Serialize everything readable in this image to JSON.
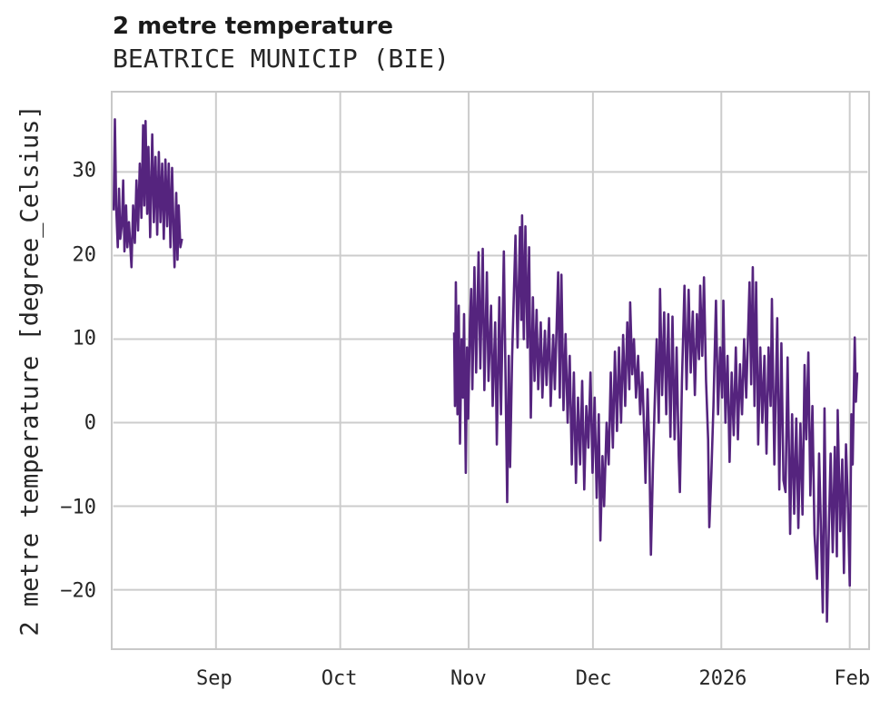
{
  "header": {
    "title": "2 metre temperature",
    "subtitle": "BEATRICE MUNICIP (BIE)"
  },
  "colors": {
    "line": "#55247e",
    "grid": "#cccccc",
    "plot_border": "#c8c8c8",
    "text": "#262626",
    "background": "#ffffff"
  },
  "chart_data": {
    "type": "line",
    "title": "2 metre temperature",
    "subtitle": "BEATRICE MUNICIP (BIE)",
    "xlabel": "",
    "ylabel": "2 metre temperature [degree_Celsius]",
    "x_unit": "days since Aug 1 (2025), data gap between late Aug and late Oct",
    "xlim": [
      6.2,
      188.3
    ],
    "ylim": [
      -27,
      39.5
    ],
    "grid": true,
    "legend": "none",
    "line_color": "#55247e",
    "line_width": 2.6,
    "x_ticks": [
      {
        "pos": 31,
        "label": "Sep"
      },
      {
        "pos": 61,
        "label": "Oct"
      },
      {
        "pos": 92,
        "label": "Nov"
      },
      {
        "pos": 122,
        "label": "Dec"
      },
      {
        "pos": 153,
        "label": "2026"
      },
      {
        "pos": 184,
        "label": "Feb"
      }
    ],
    "y_ticks": [
      {
        "pos": 30,
        "label": "30"
      },
      {
        "pos": 20,
        "label": "20"
      },
      {
        "pos": 10,
        "label": "10"
      },
      {
        "pos": 0,
        "label": "0"
      },
      {
        "pos": -10,
        "label": "−10"
      },
      {
        "pos": -20,
        "label": "−20"
      }
    ],
    "series": [
      {
        "name": "2 metre temperature",
        "segments": [
          [
            [
              6.3,
              25.4
            ],
            [
              6.6,
              36.3
            ],
            [
              6.9,
              26.0
            ],
            [
              7.3,
              21.0
            ],
            [
              7.6,
              28.0
            ],
            [
              7.9,
              22.0
            ],
            [
              8.3,
              23.8
            ],
            [
              8.6,
              29.0
            ],
            [
              8.9,
              20.5
            ],
            [
              9.3,
              26.0
            ],
            [
              9.6,
              21.0
            ],
            [
              10.0,
              24.0
            ],
            [
              10.6,
              18.6
            ],
            [
              11.0,
              26.0
            ],
            [
              11.4,
              21.5
            ],
            [
              11.8,
              29.0
            ],
            [
              12.2,
              23.0
            ],
            [
              12.6,
              31.0
            ],
            [
              13.0,
              24.5
            ],
            [
              13.4,
              35.6
            ],
            [
              13.7,
              26.0
            ],
            [
              14.0,
              36.1
            ],
            [
              14.4,
              25.0
            ],
            [
              14.7,
              33.0
            ],
            [
              15.1,
              22.2
            ],
            [
              15.6,
              34.5
            ],
            [
              16.0,
              24.0
            ],
            [
              16.4,
              31.8
            ],
            [
              16.8,
              22.5
            ],
            [
              17.2,
              32.4
            ],
            [
              17.6,
              24.0
            ],
            [
              18.0,
              31.0
            ],
            [
              18.4,
              22.0
            ],
            [
              18.8,
              31.5
            ],
            [
              19.2,
              23.5
            ],
            [
              19.6,
              31.0
            ],
            [
              20.0,
              21.0
            ],
            [
              20.4,
              30.5
            ],
            [
              20.8,
              22.0
            ],
            [
              21.0,
              18.6
            ],
            [
              21.4,
              27.5
            ],
            [
              21.7,
              19.5
            ],
            [
              22.0,
              26.0
            ],
            [
              22.4,
              21.0
            ],
            [
              22.8,
              22.0
            ]
          ],
          [
            [
              88.5,
              10.8
            ],
            [
              88.7,
              2.0
            ],
            [
              88.9,
              16.8
            ],
            [
              89.3,
              1.0
            ],
            [
              89.6,
              14.0
            ],
            [
              89.9,
              -2.5
            ],
            [
              90.3,
              10.0
            ],
            [
              90.6,
              3.0
            ],
            [
              90.9,
              13.0
            ],
            [
              91.3,
              -6.0
            ],
            [
              91.6,
              9.0
            ],
            [
              91.9,
              0.5
            ],
            [
              92.3,
              12.0
            ],
            [
              92.6,
              16.0
            ],
            [
              92.9,
              4.0
            ],
            [
              93.4,
              18.6
            ],
            [
              93.8,
              6.0
            ],
            [
              94.4,
              20.4
            ],
            [
              94.8,
              6.5
            ],
            [
              95.4,
              20.8
            ],
            [
              95.8,
              3.9
            ],
            [
              96.4,
              18.0
            ],
            [
              96.8,
              5.0
            ],
            [
              97.4,
              14.0
            ],
            [
              97.8,
              2.0
            ],
            [
              98.4,
              12.0
            ],
            [
              98.8,
              -2.6
            ],
            [
              99.4,
              15.0
            ],
            [
              99.8,
              1.0
            ],
            [
              100.5,
              20.5
            ],
            [
              101.3,
              -9.5
            ],
            [
              101.7,
              8.0
            ],
            [
              102.0,
              -5.3
            ],
            [
              102.5,
              8.0
            ],
            [
              103.3,
              22.4
            ],
            [
              103.8,
              9.0
            ],
            [
              104.4,
              23.4
            ],
            [
              104.7,
              12.3
            ],
            [
              104.9,
              24.8
            ],
            [
              105.3,
              10.0
            ],
            [
              105.7,
              23.5
            ],
            [
              106.2,
              9.0
            ],
            [
              106.6,
              21.0
            ],
            [
              107.0,
              0.6
            ],
            [
              107.5,
              15.0
            ],
            [
              107.9,
              5.0
            ],
            [
              108.4,
              13.5
            ],
            [
              108.8,
              4.0
            ],
            [
              109.4,
              12.0
            ],
            [
              109.8,
              3.0
            ],
            [
              110.4,
              11.0
            ],
            [
              110.8,
              4.5
            ],
            [
              111.4,
              12.5
            ],
            [
              111.8,
              2.0
            ],
            [
              112.4,
              10.5
            ],
            [
              112.8,
              4.0
            ],
            [
              113.6,
              18.0
            ],
            [
              114.0,
              3.0
            ],
            [
              114.4,
              17.7
            ],
            [
              114.9,
              1.5
            ],
            [
              115.4,
              10.6
            ],
            [
              115.9,
              0.0
            ],
            [
              116.4,
              8.0
            ],
            [
              116.9,
              -5.0
            ],
            [
              117.4,
              6.0
            ],
            [
              117.9,
              -7.2
            ],
            [
              118.4,
              3.0
            ],
            [
              118.9,
              -5.0
            ],
            [
              119.4,
              5.0
            ],
            [
              119.9,
              -8.0
            ],
            [
              120.4,
              2.0
            ],
            [
              120.9,
              -3.0
            ],
            [
              121.4,
              6.0
            ],
            [
              121.9,
              -6.0
            ],
            [
              122.4,
              3.0
            ],
            [
              122.9,
              -9.0
            ],
            [
              123.4,
              1.0
            ],
            [
              123.8,
              -14.1
            ],
            [
              124.3,
              -4.0
            ],
            [
              124.7,
              -10.0
            ],
            [
              125.3,
              0.0
            ],
            [
              125.8,
              -5.0
            ],
            [
              126.3,
              6.0
            ],
            [
              126.8,
              -3.0
            ],
            [
              127.3,
              8.5
            ],
            [
              127.8,
              -1.0
            ],
            [
              128.3,
              9.0
            ],
            [
              128.8,
              0.0
            ],
            [
              129.3,
              10.5
            ],
            [
              129.8,
              2.0
            ],
            [
              130.3,
              12.0
            ],
            [
              130.8,
              4.0
            ],
            [
              131.0,
              14.4
            ],
            [
              131.5,
              5.8
            ],
            [
              131.9,
              10.0
            ],
            [
              132.4,
              3.0
            ],
            [
              132.9,
              8.0
            ],
            [
              133.4,
              1.0
            ],
            [
              133.9,
              6.0
            ],
            [
              134.4,
              -1.7
            ],
            [
              134.7,
              -7.2
            ],
            [
              135.2,
              4.0
            ],
            [
              135.6,
              -3.0
            ],
            [
              136.0,
              -15.8
            ],
            [
              136.5,
              -5.0
            ],
            [
              136.9,
              2.0
            ],
            [
              137.4,
              10.0
            ],
            [
              137.9,
              0.0
            ],
            [
              138.2,
              16.0
            ],
            [
              138.7,
              3.3
            ],
            [
              139.2,
              13.2
            ],
            [
              139.7,
              1.0
            ],
            [
              140.2,
              13.0
            ],
            [
              140.7,
              -1.7
            ],
            [
              141.2,
              12.7
            ],
            [
              141.7,
              -2.0
            ],
            [
              142.2,
              9.0
            ],
            [
              142.7,
              -4.0
            ],
            [
              143.0,
              -8.3
            ],
            [
              143.5,
              5.0
            ],
            [
              144.1,
              16.4
            ],
            [
              144.6,
              4.0
            ],
            [
              145.1,
              15.9
            ],
            [
              145.6,
              6.0
            ],
            [
              146.1,
              13.3
            ],
            [
              146.6,
              3.3
            ],
            [
              147.1,
              13.0
            ],
            [
              147.6,
              7.6
            ],
            [
              147.9,
              16.4
            ],
            [
              148.4,
              8.0
            ],
            [
              148.8,
              17.4
            ],
            [
              149.3,
              5.0
            ],
            [
              149.8,
              -2.0
            ],
            [
              150.1,
              -12.5
            ],
            [
              150.6,
              -6.0
            ],
            [
              151.1,
              2.0
            ],
            [
              151.7,
              14.6
            ],
            [
              152.2,
              1.0
            ],
            [
              152.7,
              9.0
            ],
            [
              153.2,
              3.0
            ],
            [
              153.5,
              14.6
            ],
            [
              154.0,
              0.0
            ],
            [
              154.5,
              8.0
            ],
            [
              155.0,
              -4.7
            ],
            [
              155.5,
              6.0
            ],
            [
              156.0,
              -1.5
            ],
            [
              156.5,
              9.0
            ],
            [
              157.0,
              -2.0
            ],
            [
              157.5,
              7.0
            ],
            [
              158.0,
              1.0
            ],
            [
              158.5,
              10.0
            ],
            [
              159.0,
              3.0
            ],
            [
              159.8,
              16.8
            ],
            [
              160.2,
              4.6
            ],
            [
              160.6,
              18.6
            ],
            [
              161.0,
              2.0
            ],
            [
              161.4,
              16.8
            ],
            [
              161.9,
              -2.6
            ],
            [
              162.4,
              9.0
            ],
            [
              162.9,
              0.0
            ],
            [
              163.4,
              8.0
            ],
            [
              163.9,
              -3.7
            ],
            [
              164.4,
              9.0
            ],
            [
              164.9,
              2.0
            ],
            [
              165.2,
              14.8
            ],
            [
              165.8,
              -5.0
            ],
            [
              166.5,
              12.5
            ],
            [
              167.0,
              -8.0
            ],
            [
              167.5,
              9.5
            ],
            [
              168.0,
              -6.9
            ],
            [
              168.5,
              -8.3
            ],
            [
              169.0,
              7.8
            ],
            [
              169.6,
              -13.3
            ],
            [
              170.1,
              1.0
            ],
            [
              170.6,
              -10.9
            ],
            [
              171.1,
              0.5
            ],
            [
              171.6,
              -12.6
            ],
            [
              172.1,
              -0.1
            ],
            [
              172.6,
              -11.0
            ],
            [
              173.1,
              6.9
            ],
            [
              173.5,
              -2.0
            ],
            [
              174.0,
              8.4
            ],
            [
              174.5,
              -8.7
            ],
            [
              175.0,
              2.0
            ],
            [
              175.5,
              -13.3
            ],
            [
              176.1,
              -18.7
            ],
            [
              176.6,
              -3.7
            ],
            [
              177.1,
              -14.0
            ],
            [
              177.5,
              -22.7
            ],
            [
              177.9,
              1.7
            ],
            [
              178.5,
              -23.8
            ],
            [
              179.0,
              -12.0
            ],
            [
              179.4,
              -3.7
            ],
            [
              179.9,
              -15.5
            ],
            [
              180.4,
              -2.9
            ],
            [
              180.9,
              -16.0
            ],
            [
              181.1,
              1.5
            ],
            [
              181.7,
              -13.0
            ],
            [
              182.2,
              -4.4
            ],
            [
              182.6,
              -18.0
            ],
            [
              183.1,
              -2.6
            ],
            [
              183.5,
              -9.0
            ],
            [
              184.0,
              -19.5
            ],
            [
              184.4,
              1.0
            ],
            [
              184.7,
              -5.0
            ],
            [
              185.2,
              10.2
            ],
            [
              185.5,
              2.5
            ],
            [
              185.8,
              6.0
            ]
          ]
        ]
      }
    ]
  }
}
